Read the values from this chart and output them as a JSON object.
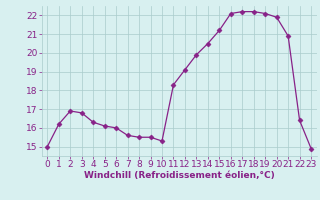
{
  "x": [
    0,
    1,
    2,
    3,
    4,
    5,
    6,
    7,
    8,
    9,
    10,
    11,
    12,
    13,
    14,
    15,
    16,
    17,
    18,
    19,
    20,
    21,
    22,
    23
  ],
  "y": [
    15.0,
    16.2,
    16.9,
    16.8,
    16.3,
    16.1,
    16.0,
    15.6,
    15.5,
    15.5,
    15.3,
    18.3,
    19.1,
    19.9,
    20.5,
    21.2,
    22.1,
    22.2,
    22.2,
    22.1,
    21.9,
    20.9,
    16.4,
    14.9
  ],
  "line_color": "#882288",
  "marker": "D",
  "marker_size": 2.5,
  "xlabel": "Windchill (Refroidissement éolien,°C)",
  "xlim": [
    -0.5,
    23.5
  ],
  "ylim": [
    14.5,
    22.5
  ],
  "yticks": [
    15,
    16,
    17,
    18,
    19,
    20,
    21,
    22
  ],
  "xticks": [
    0,
    1,
    2,
    3,
    4,
    5,
    6,
    7,
    8,
    9,
    10,
    11,
    12,
    13,
    14,
    15,
    16,
    17,
    18,
    19,
    20,
    21,
    22,
    23
  ],
  "bg_color": "#d8f0f0",
  "grid_color": "#aacccc",
  "tick_label_color": "#882288",
  "xlabel_color": "#882288",
  "xlabel_fontsize": 6.5,
  "tick_fontsize": 6.5
}
